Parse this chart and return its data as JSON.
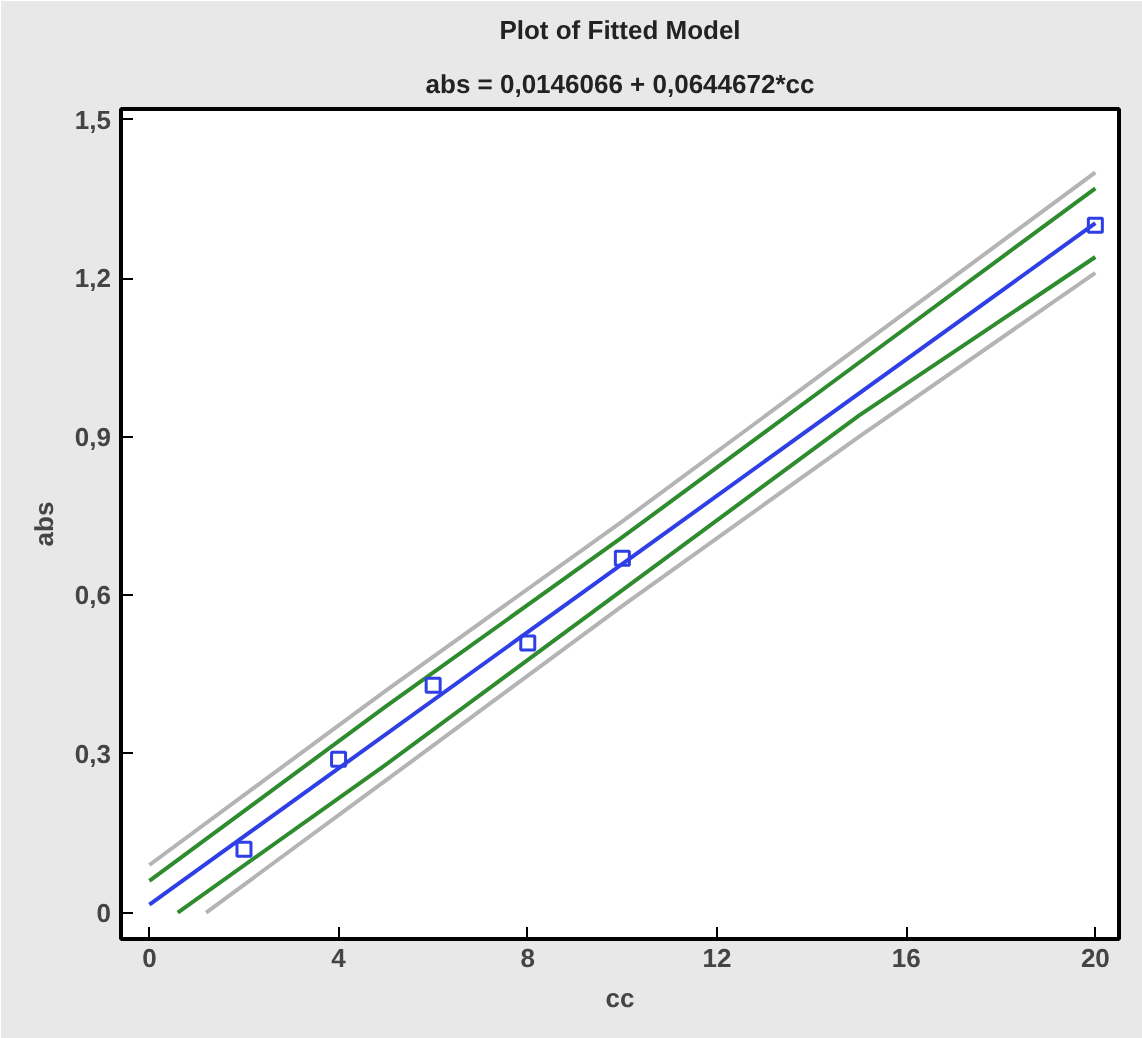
{
  "chart_data": {
    "type": "line",
    "title": "Plot of Fitted Model",
    "subtitle": "abs = 0,0146066 + 0,0644672*cc",
    "xlabel": "cc",
    "ylabel": "abs",
    "xlim": [
      -0.6,
      20.5
    ],
    "ylim": [
      -0.05,
      1.52
    ],
    "xticks": [
      0,
      4,
      8,
      12,
      16,
      20
    ],
    "yticks": [
      0,
      {
        "value": 0.3,
        "label": "0,3"
      },
      {
        "value": 0.6,
        "label": "0,6"
      },
      {
        "value": 0.9,
        "label": "0,9"
      },
      {
        "value": 1.2,
        "label": "1,2"
      },
      {
        "value": 1.5,
        "label": "1,5"
      }
    ],
    "grid": false,
    "series": [
      {
        "color": "#b4b4b4",
        "x": [
          0,
          5,
          10,
          15,
          20
        ],
        "values": [
          0.09,
          0.42,
          0.74,
          1.07,
          1.4
        ]
      },
      {
        "color": "#b4b4b4",
        "x": [
          1.2,
          5,
          10,
          15,
          20
        ],
        "values": [
          0.0,
          0.25,
          0.58,
          0.9,
          1.21
        ]
      },
      {
        "color": "#2e8b2e",
        "x": [
          0,
          5,
          10,
          15,
          20
        ],
        "values": [
          0.06,
          0.39,
          0.71,
          1.04,
          1.37
        ]
      },
      {
        "color": "#2e8b2e",
        "x": [
          0.6,
          5,
          10,
          15,
          20
        ],
        "values": [
          0.0,
          0.28,
          0.61,
          0.94,
          1.24
        ]
      },
      {
        "color": "#2f3fe6",
        "x": [
          0,
          20
        ],
        "values": [
          0.015,
          1.304
        ]
      },
      {
        "type": "scatter",
        "color": "#2f3fe6",
        "marker": "square",
        "x": [
          2,
          4,
          6,
          8,
          10,
          20
        ],
        "values": [
          0.12,
          0.29,
          0.43,
          0.51,
          0.67,
          1.3
        ]
      }
    ]
  }
}
